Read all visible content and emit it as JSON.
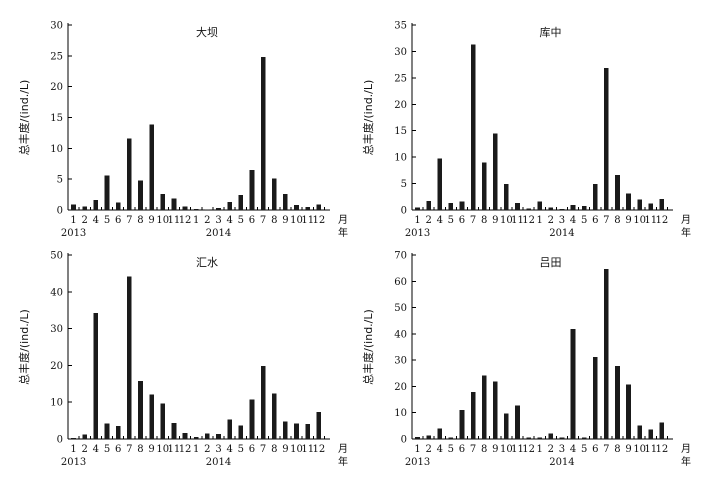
{
  "chart_data": [
    {
      "type": "bar",
      "title": "大坝",
      "ylabel": "总丰度/(ind./L)",
      "xlabel": "月年",
      "x_unit_month": "月",
      "x_unit_year": "年",
      "ylim": [
        0,
        30
      ],
      "yticks": [
        0,
        5,
        10,
        15,
        20,
        25,
        30
      ],
      "categories": [
        "1",
        "2",
        "4",
        "5",
        "6",
        "7",
        "8",
        "9",
        "10",
        "11",
        "12",
        "1",
        "2",
        "3",
        "4",
        "5",
        "6",
        "7",
        "8",
        "9",
        "10",
        "11",
        "12"
      ],
      "year_labels": [
        {
          "label": "2013",
          "index": 0
        },
        {
          "label": "2014",
          "index": 13
        }
      ],
      "values": [
        0.9,
        0.6,
        1.6,
        5.6,
        1.2,
        11.6,
        4.8,
        13.9,
        2.6,
        1.9,
        0.6,
        0.2,
        0.1,
        0.3,
        1.3,
        2.4,
        6.5,
        24.8,
        5.1,
        2.6,
        0.8,
        0.5,
        0.9
      ]
    },
    {
      "type": "bar",
      "title": "库中",
      "ylabel": "总丰度/(ind./L)",
      "xlabel": "月年",
      "x_unit_month": "月",
      "x_unit_year": "年",
      "ylim": [
        0,
        35
      ],
      "yticks": [
        0,
        5,
        10,
        15,
        20,
        25,
        30,
        35
      ],
      "categories": [
        "1",
        "2",
        "4",
        "5",
        "6",
        "7",
        "8",
        "9",
        "10",
        "11",
        "12",
        "1",
        "2",
        "3",
        "4",
        "5",
        "6",
        "7",
        "8",
        "9",
        "10",
        "11",
        "12"
      ],
      "year_labels": [
        {
          "label": "2013",
          "index": 0
        },
        {
          "label": "2014",
          "index": 13
        }
      ],
      "values": [
        0.5,
        1.7,
        9.7,
        1.3,
        1.6,
        31.3,
        9.0,
        14.5,
        4.9,
        1.3,
        0.3,
        1.6,
        0.5,
        0.2,
        0.9,
        0.8,
        4.9,
        26.9,
        6.6,
        3.1,
        2.0,
        1.2,
        2.1
      ]
    },
    {
      "type": "bar",
      "title": "汇水",
      "ylabel": "总丰度/(ind./L)",
      "xlabel": "月年",
      "x_unit_month": "月",
      "x_unit_year": "年",
      "ylim": [
        0,
        50
      ],
      "yticks": [
        0,
        10,
        20,
        30,
        40,
        50
      ],
      "categories": [
        "1",
        "2",
        "4",
        "5",
        "6",
        "7",
        "8",
        "9",
        "10",
        "11",
        "12",
        "1",
        "2",
        "3",
        "4",
        "5",
        "6",
        "7",
        "8",
        "9",
        "10",
        "11",
        "12"
      ],
      "year_labels": [
        {
          "label": "2013",
          "index": 0
        },
        {
          "label": "2014",
          "index": 13
        }
      ],
      "values": [
        0.3,
        1.2,
        34.3,
        4.2,
        3.6,
        44.2,
        15.7,
        12.1,
        9.7,
        4.3,
        1.6,
        0.6,
        1.5,
        1.3,
        5.3,
        3.7,
        10.7,
        19.9,
        12.3,
        4.8,
        4.2,
        4.1,
        7.3
      ]
    },
    {
      "type": "bar",
      "title": "吕田",
      "ylabel": "总丰度/(ind./L)",
      "xlabel": "月年",
      "x_unit_month": "月",
      "x_unit_year": "年",
      "ylim": [
        0,
        70
      ],
      "yticks": [
        0,
        10,
        20,
        30,
        40,
        50,
        60,
        70
      ],
      "categories": [
        "1",
        "2",
        "4",
        "5",
        "6",
        "7",
        "8",
        "9",
        "10",
        "11",
        "12",
        "1",
        "2",
        "3",
        "4",
        "5",
        "6",
        "7",
        "8",
        "9",
        "10",
        "11",
        "12"
      ],
      "year_labels": [
        {
          "label": "2013",
          "index": 0
        },
        {
          "label": "2014",
          "index": 13
        }
      ],
      "values": [
        0.7,
        1.4,
        3.9,
        0.6,
        11.0,
        17.9,
        24.1,
        21.8,
        9.7,
        12.8,
        0.5,
        0.6,
        2.0,
        0.5,
        41.8,
        0.6,
        31.2,
        64.6,
        27.7,
        20.8,
        5.1,
        3.7,
        6.3
      ]
    }
  ]
}
